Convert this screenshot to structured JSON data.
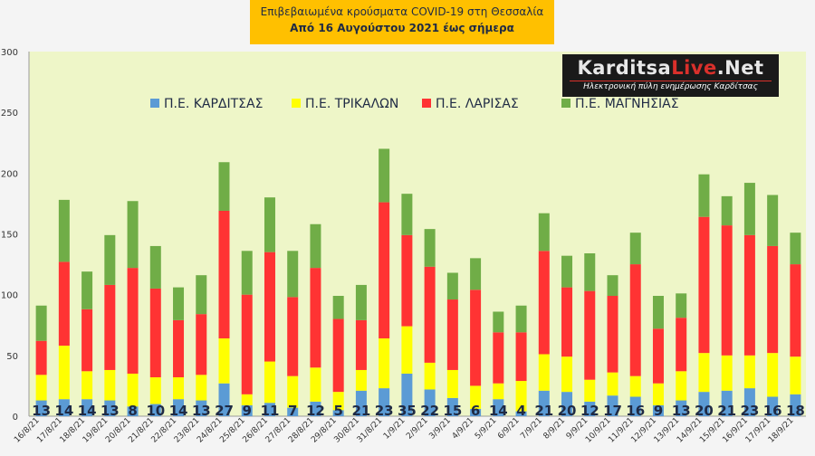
{
  "header": {
    "line1": "Επιβεβαιωμένα κρούσματα COVID-19 στη Θεσσαλία",
    "line2": "Από 16 Αυγούστου 2021 έως σήμερα"
  },
  "logo": {
    "brand_a": "Karditsa",
    "brand_b": "Live",
    "brand_c": ".Net",
    "tagline": "Ηλεκτρονική πύλη ενημέρωσης Καρδίτσας"
  },
  "colors": {
    "plot_bg": "#eef6c8",
    "karditsa": "#5b9bd5",
    "trikala": "#ffff00",
    "larisa": "#ff3333",
    "magnisia": "#70ad47",
    "axis_text": "#333333",
    "label_text": "#1f2a44"
  },
  "chart_data": {
    "type": "bar",
    "stacked": true,
    "categories": [
      "16/8/21",
      "17/8/21",
      "18/8/21",
      "19/8/21",
      "20/8/21",
      "21/8/21",
      "22/8/21",
      "23/8/21",
      "24/8/21",
      "25/8/21",
      "26/8/21",
      "27/8/21",
      "28/8/21",
      "29/8/21",
      "30/8/21",
      "31/8/21",
      "1/9/21",
      "2/9/21",
      "3/9/21",
      "4/9/21",
      "5/9/21",
      "6/9/21",
      "7/9/21",
      "8/9/21",
      "9/9/21",
      "10/9/21",
      "11/9/21",
      "12/9/21",
      "13/9/21",
      "14/9/21",
      "15/9/21",
      "16/9/21",
      "17/9/21",
      "18/9/21"
    ],
    "series": [
      {
        "name": "Π.Ε. ΚΑΡΔΙΤΣΑΣ",
        "values": [
          13,
          14,
          14,
          13,
          8,
          10,
          14,
          13,
          27,
          9,
          11,
          7,
          12,
          5,
          21,
          23,
          35,
          22,
          15,
          6,
          14,
          4,
          21,
          20,
          12,
          17,
          16,
          9,
          13,
          20,
          21,
          23,
          16,
          18
        ]
      },
      {
        "name": "Π.Ε. ΤΡΙΚΑΛΩΝ",
        "values": [
          21,
          44,
          23,
          25,
          27,
          22,
          18,
          21,
          37,
          9,
          34,
          26,
          28,
          15,
          17,
          41,
          39,
          22,
          23,
          19,
          13,
          25,
          30,
          29,
          18,
          19,
          17,
          18,
          24,
          32,
          29,
          27,
          36,
          31
        ]
      },
      {
        "name": "Π.Ε. ΛΑΡΙΣΑΣ",
        "values": [
          28,
          69,
          51,
          70,
          87,
          73,
          47,
          50,
          105,
          82,
          90,
          65,
          82,
          60,
          41,
          112,
          75,
          79,
          58,
          79,
          42,
          40,
          85,
          57,
          73,
          63,
          92,
          45,
          44,
          112,
          107,
          99,
          88,
          76
        ]
      },
      {
        "name": "Π.Ε. ΜΑΓΝΗΣΙΑΣ",
        "values": [
          29,
          51,
          31,
          41,
          55,
          35,
          27,
          32,
          40,
          36,
          45,
          38,
          36,
          19,
          29,
          44,
          34,
          31,
          22,
          26,
          17,
          22,
          31,
          26,
          31,
          17,
          26,
          27,
          20,
          35,
          24,
          43,
          42,
          26
        ]
      }
    ],
    "data_labels": "Π.Ε. ΚΑΡΔΙΤΣΑΣ",
    "ylim": [
      0,
      300
    ],
    "yticks": [
      0,
      50,
      100,
      150,
      200,
      250,
      300
    ],
    "grid": false,
    "legend": "top"
  }
}
